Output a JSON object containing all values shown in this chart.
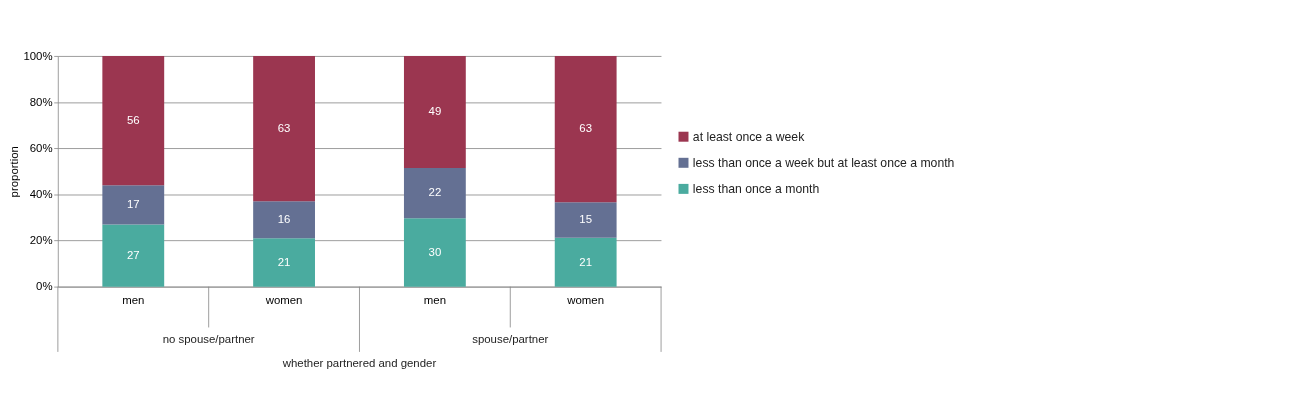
{
  "chart_data": {
    "type": "bar",
    "stacked": true,
    "xlabel": "whether partnered and gender",
    "ylabel": "proportion",
    "categories": [
      "men",
      "women",
      "men",
      "women"
    ],
    "annotations": [
      "no spouse/partner",
      "spouse/partner"
    ],
    "series": [
      {
        "name": "less than once a month",
        "color": "#4aab9f",
        "values": [
          27,
          21,
          29.7,
          21.2
        ],
        "value_labels": [
          "27",
          "21",
          "30",
          "21"
        ]
      },
      {
        "name": "less than once a week but at least once a month",
        "color": "#647093",
        "values": [
          17,
          16,
          21.8,
          15.4
        ],
        "value_labels": [
          "17",
          "16",
          "22",
          "15"
        ]
      },
      {
        "name": "at least once a week",
        "color": "#9b3650",
        "values": [
          56,
          63,
          48.5,
          63.4
        ],
        "value_labels": [
          "56",
          "63",
          "49",
          "63"
        ]
      }
    ],
    "ylim": [
      0,
      100
    ],
    "yticks": [
      {
        "value": 0,
        "label": "0%"
      },
      {
        "value": 20,
        "label": "20%"
      },
      {
        "value": 40,
        "label": "40%"
      },
      {
        "value": 60,
        "label": "60%"
      },
      {
        "value": 80,
        "label": "80%"
      },
      {
        "value": 100,
        "label": "100%"
      }
    ],
    "grid": "y",
    "legend": "right"
  }
}
